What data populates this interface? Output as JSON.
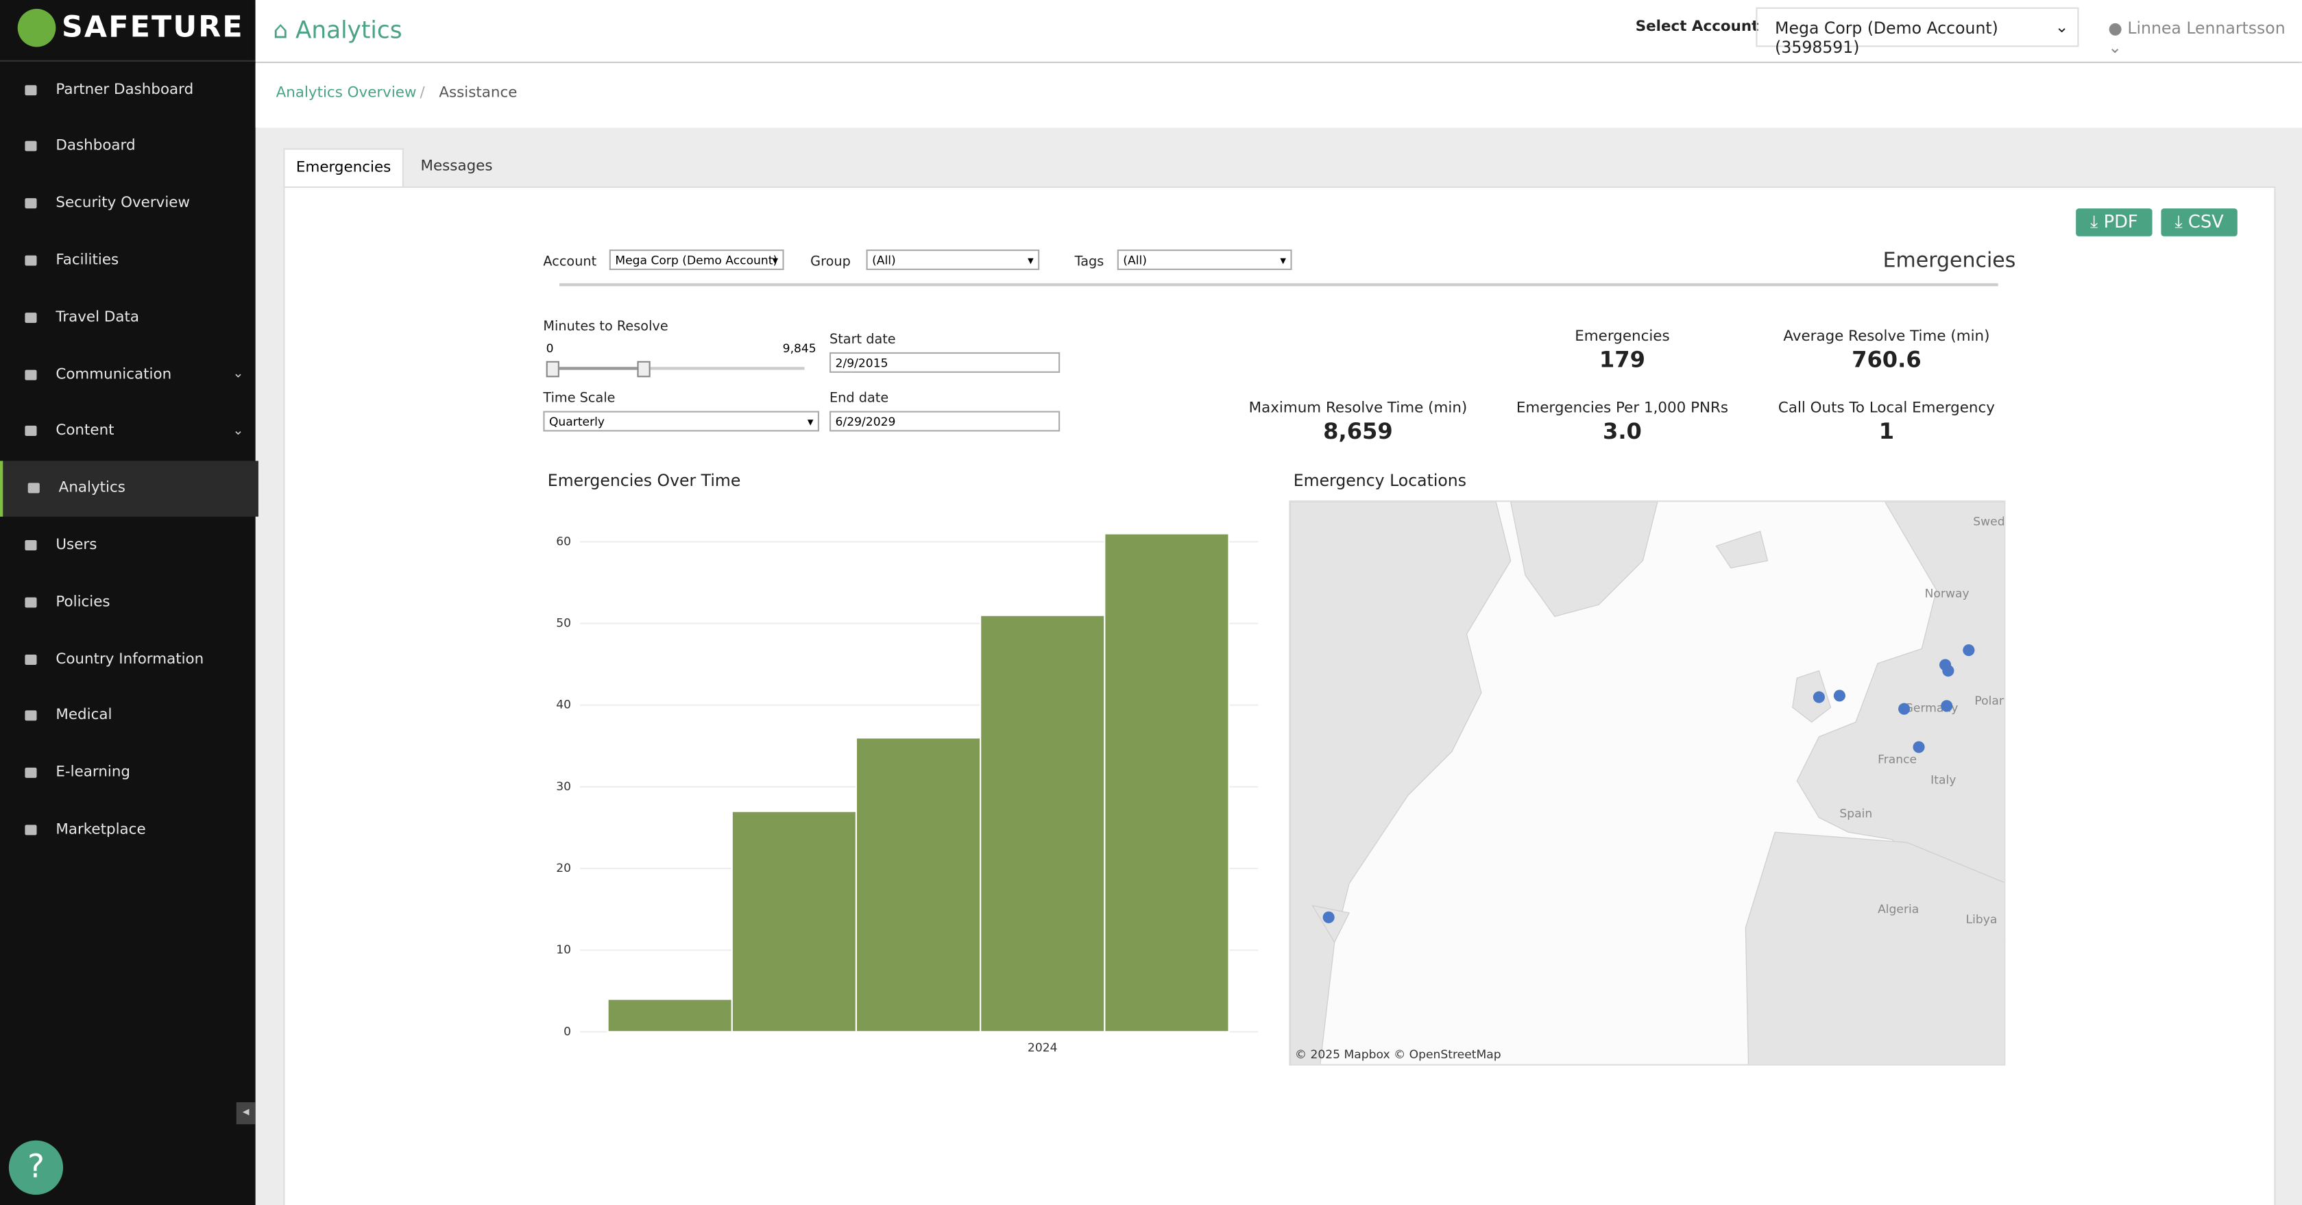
{
  "header": {
    "logo": "SAFETURE",
    "title": "Analytics",
    "select_label": "Select Account",
    "account": "Mega Corp (Demo Account) (3598591)",
    "user": "Linnea Lennartsson"
  },
  "sidebar": {
    "items": [
      {
        "label": "Partner Dashboard"
      },
      {
        "label": "Dashboard"
      },
      {
        "label": "Security Overview"
      },
      {
        "label": "Facilities"
      },
      {
        "label": "Travel Data"
      },
      {
        "label": "Communication",
        "submenu": true
      },
      {
        "label": "Content",
        "submenu": true
      },
      {
        "label": "Analytics",
        "active": true
      },
      {
        "label": "Users"
      },
      {
        "label": "Policies"
      },
      {
        "label": "Country Information"
      },
      {
        "label": "Medical"
      },
      {
        "label": "E-learning"
      },
      {
        "label": "Marketplace"
      }
    ]
  },
  "breadcrumb": [
    "Analytics Overview",
    "Assistance"
  ],
  "tabs": [
    "Emergencies",
    "Messages"
  ],
  "buttons": [
    "PDF",
    "CSV"
  ],
  "filters": {
    "account_label": "Account",
    "account": "Mega Corp (Demo Account)",
    "group_label": "Group",
    "group": "(All)",
    "tags_label": "Tags",
    "tags": "(All)",
    "heading": "Emergencies"
  },
  "controls": {
    "minutes_label": "Minutes to Resolve",
    "minutes_min": "0",
    "minutes_max": "9,845",
    "start_label": "Start date",
    "start": "2/9/2015",
    "scale_label": "Time Scale",
    "scale": "Quarterly",
    "end_label": "End date",
    "end": "6/29/2029"
  },
  "kpis": [
    {
      "label": "Emergencies",
      "value": "179"
    },
    {
      "label": "Average Resolve Time (min)",
      "value": "760.6"
    },
    {
      "label": "Maximum Resolve Time (min)",
      "value": "8,659"
    },
    {
      "label": "Emergencies Per 1,000 PNRs",
      "value": "3.0"
    },
    {
      "label": "Call Outs To Local Emergency",
      "value": "1"
    }
  ],
  "chart_data": {
    "type": "bar",
    "title": "Emergencies Over Time",
    "categories": [
      null,
      null,
      null,
      "2024",
      null
    ],
    "values": [
      4,
      27,
      36,
      51,
      61
    ],
    "color": "#7f9a52",
    "ylim": [
      0,
      62
    ],
    "yticks": [
      0,
      10,
      20,
      30,
      40,
      50,
      60
    ],
    "grid": true
  },
  "map": {
    "title": "Emergency Locations",
    "labels": [
      "Sweden",
      "Norway",
      "Poland",
      "Germany",
      "France",
      "Italy",
      "Spain",
      "Algeria",
      "Libya"
    ],
    "attribution": "© 2025 Mapbox © OpenStreetMap"
  },
  "help": "?"
}
